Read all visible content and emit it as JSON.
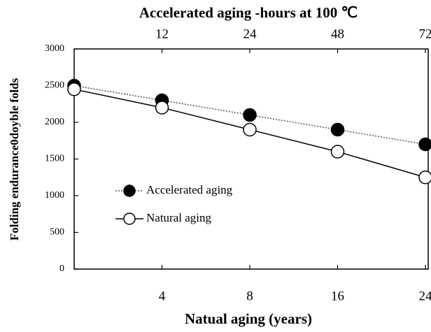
{
  "chart_data": {
    "type": "line",
    "title": "Accelerated aging -hours at 100 ℃",
    "x_label": "Natual aging (years)",
    "y_label": "Folding endurance0doyble folds",
    "categories": [
      null,
      "4",
      "8",
      "16",
      "24"
    ],
    "top_categories": [
      null,
      "12",
      "24",
      "48",
      "72"
    ],
    "series": [
      {
        "name": "Accelerated aging",
        "color": "#000000",
        "marker": "filled",
        "linestyle": "dotted",
        "values": [
          2500,
          2300,
          2100,
          1900,
          1700
        ]
      },
      {
        "name": "Natural aging",
        "color": "#000000",
        "marker": "open",
        "linestyle": "solid",
        "values": [
          2450,
          2200,
          1900,
          1600,
          1250
        ]
      }
    ],
    "ylim": [
      0,
      3000
    ],
    "yticks": [
      0,
      500,
      1000,
      1500,
      2000,
      2500,
      3000
    ],
    "legend": "center-left"
  }
}
